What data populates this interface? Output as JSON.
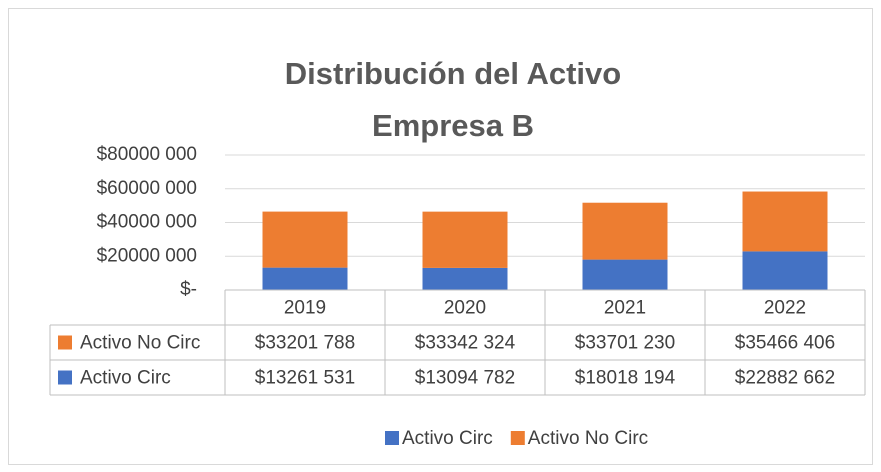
{
  "chart_data": {
    "type": "stacked_bar",
    "title": [
      "Distribución del Activo",
      "Empresa B"
    ],
    "categories": [
      "2019",
      "2020",
      "2021",
      "2022"
    ],
    "series": [
      {
        "name": "Activo Circ",
        "color": "#4472c4",
        "values": [
          13261531,
          13094782,
          18018194,
          22882662
        ],
        "value_labels": [
          "$13261 531",
          "$13094 782",
          "$18018 194",
          "$22882 662"
        ]
      },
      {
        "name": "Activo No Circ",
        "color": "#ed7d31",
        "values": [
          33201788,
          33342324,
          33701230,
          35466406
        ],
        "value_labels": [
          "$33201 788",
          "$33342 324",
          "$33701 230",
          "$35466 406"
        ]
      }
    ],
    "ylim": [
      0,
      80000000
    ],
    "yticks": [
      {
        "value": 0,
        "label": "$-"
      },
      {
        "value": 20000000,
        "label": "$20000 000"
      },
      {
        "value": 40000000,
        "label": "$40000 000"
      },
      {
        "value": 60000000,
        "label": "$60000 000"
      },
      {
        "value": 80000000,
        "label": "$80000 000"
      }
    ],
    "grid": true,
    "legend": "bottom",
    "data_table": true
  }
}
